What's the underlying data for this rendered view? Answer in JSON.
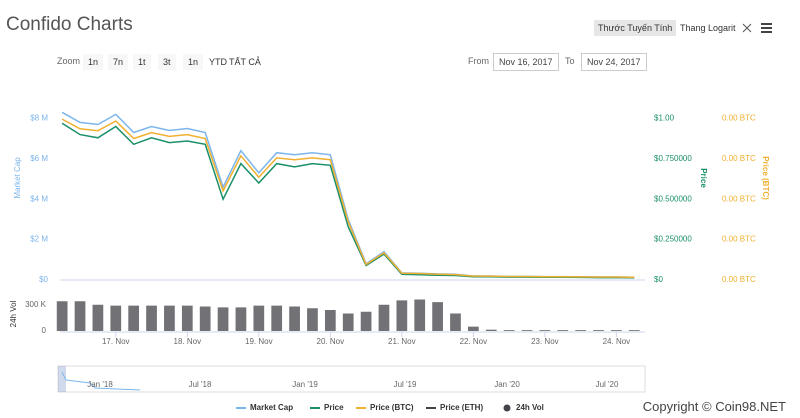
{
  "header": {
    "title": "Confido Charts",
    "scale_buttons": [
      "Thước Tuyến Tính",
      "Thang Logarit"
    ]
  },
  "toolbar": {
    "zoom_label": "Zoom",
    "zoom_buttons": [
      "1n",
      "7n",
      "1t",
      "3t",
      "1n",
      "YTD",
      "TẤT CẢ"
    ],
    "from_label": "From",
    "from": "Nov 16, 2017",
    "to_label": "To",
    "to": "Nov 24, 2017"
  },
  "chart_data": [
    {
      "type": "line",
      "x": [
        16.25,
        16.5,
        16.75,
        17,
        17.25,
        17.5,
        17.75,
        18,
        18.25,
        18.5,
        18.75,
        19,
        19.25,
        19.5,
        19.75,
        20,
        20.25,
        20.5,
        20.75,
        21,
        21.25,
        21.5,
        21.75,
        22,
        22.25,
        22.5,
        22.75,
        23,
        23.25,
        23.5,
        23.75,
        24,
        24.25
      ],
      "xlim": [
        16.22,
        24.4
      ],
      "ylim": [
        0,
        10000000
      ],
      "yticks": [
        {
          "value": 0,
          "label": "$0"
        },
        {
          "value": 2000000,
          "label": "$2 M"
        },
        {
          "value": 4000000,
          "label": "$4 M"
        },
        {
          "value": 6000000,
          "label": "$6 M"
        },
        {
          "value": 8000000,
          "label": "$8 M"
        }
      ],
      "y_label": "Market Cap",
      "y2lim": [
        0,
        1.25
      ],
      "y2ticks": [
        {
          "value": 0,
          "label": "$0"
        },
        {
          "value": 0.25,
          "label": "$0.250000"
        },
        {
          "value": 0.5,
          "label": "$0.500000"
        },
        {
          "value": 0.75,
          "label": "$0.750000"
        },
        {
          "value": 1,
          "label": "$1.00"
        }
      ],
      "y2_label": "Price",
      "y3lim": [
        0,
        0.00015
      ],
      "y3ticks": [
        {
          "value": 0,
          "label": "0.00 BTC"
        },
        {
          "value": 3e-05,
          "label": "0.00 BTC"
        },
        {
          "value": 6e-05,
          "label": "0.00 BTC"
        },
        {
          "value": 9e-05,
          "label": "0.00 BTC"
        },
        {
          "value": 0.00012,
          "label": "0.00 BTC"
        }
      ],
      "y3_label": "Price (BTC)",
      "series": [
        {
          "name": "Market Cap",
          "color": "#7cb5ec",
          "axis": "y",
          "values": [
            8300000,
            7800000,
            7700000,
            8200000,
            7300000,
            7600000,
            7400000,
            7500000,
            7300000,
            4600000,
            6400000,
            5300000,
            6300000,
            6200000,
            6300000,
            6200000,
            3000000,
            800000,
            1400000,
            350000,
            330000,
            300000,
            280000,
            200000,
            200000,
            180000,
            180000,
            170000,
            170000,
            160000,
            150000,
            150000,
            140000
          ]
        },
        {
          "name": "Price",
          "color": "#1a8f6a",
          "axis": "y2",
          "values": [
            0.97,
            0.9,
            0.88,
            0.95,
            0.84,
            0.88,
            0.85,
            0.86,
            0.84,
            0.5,
            0.72,
            0.6,
            0.72,
            0.7,
            0.72,
            0.71,
            0.33,
            0.09,
            0.16,
            0.035,
            0.033,
            0.03,
            0.028,
            0.02,
            0.02,
            0.018,
            0.018,
            0.017,
            0.017,
            0.016,
            0.015,
            0.015,
            0.014
          ]
        },
        {
          "name": "Price (BTC)",
          "color": "#f0b030",
          "axis": "y3",
          "values": [
            0.0001195,
            0.0001123,
            0.0001109,
            0.0001181,
            0.0001051,
            0.0001094,
            0.0001066,
            0.000108,
            0.0001051,
            6.62e-05,
            9.22e-05,
            7.63e-05,
            9.07e-05,
            8.93e-05,
            9.07e-05,
            8.93e-05,
            4.32e-05,
            1.15e-05,
            2.02e-05,
            5e-06,
            4.8e-06,
            4.3e-06,
            4e-06,
            2.9e-06,
            2.9e-06,
            2.6e-06,
            2.6e-06,
            2.4e-06,
            2.4e-06,
            2.3e-06,
            2.2e-06,
            2.2e-06,
            2e-06
          ]
        },
        {
          "name": "Price (ETH)",
          "color": "#434348",
          "axis": "y3",
          "values": [
            null,
            null,
            null,
            null,
            null,
            null,
            null,
            null,
            null,
            null,
            null,
            null,
            null,
            null,
            null,
            null,
            null,
            null,
            null,
            null,
            null,
            null,
            null,
            null,
            null,
            null,
            null,
            null,
            null,
            null,
            null,
            null,
            null
          ]
        }
      ]
    },
    {
      "type": "bar",
      "x": [
        16.25,
        16.5,
        16.75,
        17,
        17.25,
        17.5,
        17.75,
        18,
        18.25,
        18.5,
        18.75,
        19,
        19.25,
        19.5,
        19.75,
        20,
        20.25,
        20.5,
        20.75,
        21,
        21.25,
        21.5,
        21.75,
        22,
        22.25,
        22.5,
        22.75,
        23,
        23.25,
        23.5,
        23.75,
        24,
        24.25
      ],
      "xlim": [
        16.22,
        24.4
      ],
      "xticks": [
        {
          "value": 17,
          "label": "17. Nov"
        },
        {
          "value": 18,
          "label": "18. Nov"
        },
        {
          "value": 19,
          "label": "19. Nov"
        },
        {
          "value": 20,
          "label": "20. Nov"
        },
        {
          "value": 21,
          "label": "21. Nov"
        },
        {
          "value": 22,
          "label": "22. Nov"
        },
        {
          "value": 23,
          "label": "23. Nov"
        },
        {
          "value": 24,
          "label": "24. Nov"
        }
      ],
      "ylim": [
        0,
        400000
      ],
      "yticks": [
        0,
        {
          "value": 300000,
          "label": "300 K"
        }
      ],
      "y_label": "24h Vol",
      "series": [
        {
          "name": "24h Vol",
          "color": "#434348",
          "values": [
            340000,
            340000,
            300000,
            290000,
            290000,
            290000,
            290000,
            290000,
            280000,
            270000,
            270000,
            290000,
            290000,
            280000,
            260000,
            240000,
            200000,
            220000,
            300000,
            350000,
            360000,
            330000,
            200000,
            50000,
            15000,
            10000,
            10000,
            10000,
            10000,
            10000,
            10000,
            10000,
            10000
          ]
        }
      ]
    }
  ],
  "navigator": {
    "labels": [
      "Jan '18",
      "Jul '18",
      "Jan '19",
      "Jul '19",
      "Jan '20",
      "Jul '20"
    ]
  },
  "footer": {
    "copyright": "Copyright © Coin98.NET"
  }
}
